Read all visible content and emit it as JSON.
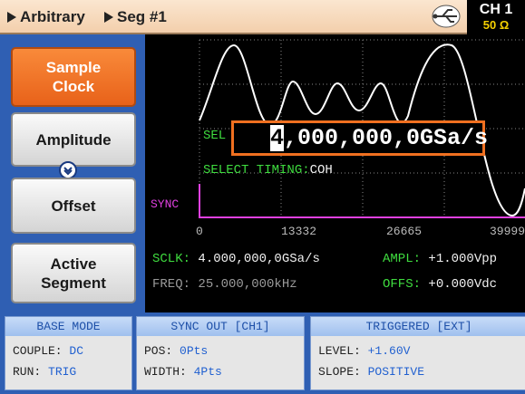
{
  "header": {
    "breadcrumb": [
      "Arbitrary",
      "Seg #1"
    ],
    "channel": "CH 1",
    "impedance": "50 Ω"
  },
  "menu": [
    "Sample Clock",
    "Amplitude",
    "Offset",
    "Active Segment"
  ],
  "display": {
    "edit_label": "SEL",
    "edit_cursor": "4",
    "edit_rest": ",000,000,0GSa/s",
    "timing_label": "SELECT TIMING:",
    "timing_value": "COH",
    "sync_label": "SYNC",
    "x_labels": [
      "0",
      "13332",
      "26665",
      "39999"
    ],
    "status": [
      {
        "label": "SCLK:",
        "value": "4.000,000,0GSa/s"
      },
      {
        "label": "AMPL:",
        "value": "+1.000Vpp"
      },
      {
        "label": "FREQ:",
        "value": "25.000,000kHz"
      },
      {
        "label": "OFFS:",
        "value": "+0.000Vdc"
      }
    ]
  },
  "panels": [
    {
      "title": "BASE MODE",
      "rows": [
        {
          "label": "COUPLE:",
          "value": "DC"
        },
        {
          "label": "RUN:",
          "value": "TRIG"
        }
      ]
    },
    {
      "title": "SYNC OUT [CH1]",
      "rows": [
        {
          "label": "POS:",
          "value": "0Pts"
        },
        {
          "label": "WIDTH:",
          "value": "4Pts"
        }
      ]
    },
    {
      "title": "TRIGGERED [EXT]",
      "rows": [
        {
          "label": "LEVEL:",
          "value": "+1.60V"
        },
        {
          "label": "SLOPE:",
          "value": "POSITIVE"
        }
      ]
    }
  ]
}
